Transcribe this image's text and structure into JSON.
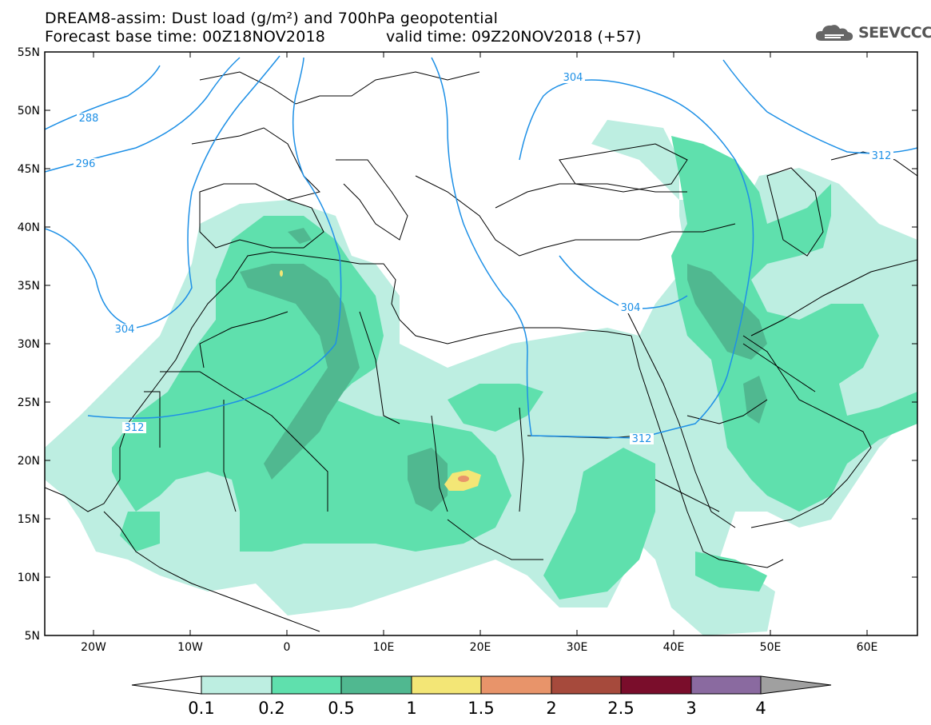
{
  "header": {
    "title_line1": "DREAM8-assim: Dust load (g/m²) and 700hPa geopotential",
    "title_line2": "Forecast base time: 00Z18NOV2018",
    "valid_time": "valid time: 09Z20NOV2018 (+57)",
    "logo_text": "SEEVCCC"
  },
  "axes": {
    "lat_labels": [
      "55N",
      "50N",
      "45N",
      "40N",
      "35N",
      "30N",
      "25N",
      "20N",
      "15N",
      "10N",
      "5N"
    ],
    "lon_labels": [
      "20W",
      "10W",
      "0",
      "10E",
      "20E",
      "30E",
      "40E",
      "50E",
      "60E"
    ]
  },
  "contours": {
    "labels": [
      "288",
      "296",
      "304",
      "304",
      "304",
      "312",
      "312",
      "312"
    ],
    "color": "#1e90e6"
  },
  "colorbar": {
    "ticks": [
      "0.1",
      "0.2",
      "0.5",
      "1",
      "1.5",
      "2",
      "2.5",
      "3",
      "4"
    ],
    "colors": [
      "#bdeee1",
      "#5fe0ad",
      "#50b890",
      "#f3e676",
      "#e8946a",
      "#a64a3c",
      "#7a0d2b",
      "#8a6aa0",
      "#a0a0a0"
    ],
    "under_color": "#ffffff"
  },
  "map_colors": {
    "ocean": "#ffffff",
    "border": "#000000",
    "dust_low": "#bdeee1",
    "dust_mid": "#5fe0ad",
    "dust_high": "#50b890",
    "dust_peak": "#f3e676",
    "dust_max": "#e8946a"
  }
}
